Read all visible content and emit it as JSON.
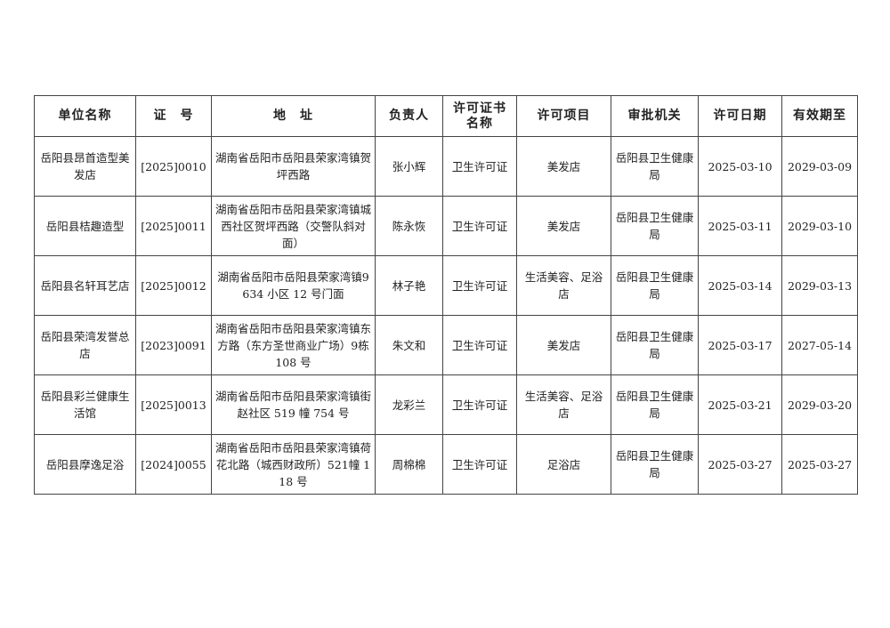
{
  "headers": [
    "单位名称",
    "证　号",
    "地　址",
    "负责人",
    "许可证书名称",
    "许可项目",
    "审批机关",
    "许可日期",
    "有效期至"
  ],
  "rows": [
    [
      "岳阳县昂首造型美发店",
      "[2025]0010",
      "湖南省岳阳市岳阳县荣家湾镇贺坪西路",
      "张小辉",
      "卫生许可证",
      "美发店",
      "岳阳县卫生健康局",
      "2025-03-10",
      "2029-03-09"
    ],
    [
      "岳阳县桔趣造型",
      "[2025]0011",
      "湖南省岳阳市岳阳县荣家湾镇城西社区贺坪西路（交警队斜对面）",
      "陈永恢",
      "卫生许可证",
      "美发店",
      "岳阳县卫生健康局",
      "2025-03-11",
      "2029-03-10"
    ],
    [
      "岳阳县名轩耳艺店",
      "[2025]0012",
      "湖南省岳阳市岳阳县荣家湾镇9634 小区 12 号门面",
      "林子艳",
      "卫生许可证",
      "生活美容、足浴店",
      "岳阳县卫生健康局",
      "2025-03-14",
      "2029-03-13"
    ],
    [
      "岳阳县荣湾发誉总店",
      "[2023]0091",
      "湖南省岳阳市岳阳县荣家湾镇东方路（东方圣世商业广场）9栋 108 号",
      "朱文和",
      "卫生许可证",
      "美发店",
      "岳阳县卫生健康局",
      "2025-03-17",
      "2027-05-14"
    ],
    [
      "岳阳县彩兰健康生活馆",
      "[2025]0013",
      "湖南省岳阳市岳阳县荣家湾镇街赵社区 519 幢 754 号",
      "龙彩兰",
      "卫生许可证",
      "生活美容、足浴店",
      "岳阳县卫生健康局",
      "2025-03-21",
      "2029-03-20"
    ],
    [
      "岳阳县摩逸足浴",
      "[2024]0055",
      "湖南省岳阳市岳阳县荣家湾镇荷花北路（城西财政所）521幢 118 号",
      "周棉棉",
      "卫生许可证",
      "足浴店",
      "岳阳县卫生健康局",
      "2025-03-27",
      "2025-03-27"
    ]
  ]
}
